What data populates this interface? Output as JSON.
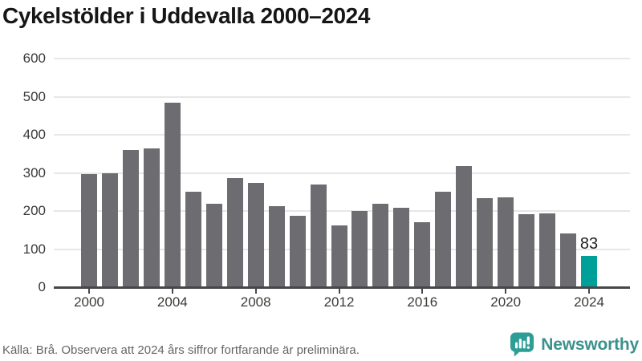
{
  "title": "Cykelstölder i Uddevalla 2000–2024",
  "source_note": "Källa: Brå. Observera att 2024 års siffror fortfarande är preliminära.",
  "branding": {
    "name": "Newsworthy"
  },
  "colors": {
    "bar": "#6d6d71",
    "highlight": "#00a09a",
    "grid": "#e7e7e7",
    "axis": "#47474b",
    "title": "#161616",
    "tick_label": "#3a3a3a",
    "value_label": "#1f1f1f",
    "source": "#646464",
    "brand_icon": "#2d9e96",
    "brand_text": "#3a918d"
  },
  "chart_data": {
    "type": "bar",
    "title": "Cykelstölder i Uddevalla 2000–2024",
    "x": [
      2000,
      2001,
      2002,
      2003,
      2004,
      2005,
      2006,
      2007,
      2008,
      2009,
      2010,
      2011,
      2012,
      2013,
      2014,
      2015,
      2016,
      2017,
      2018,
      2019,
      2020,
      2021,
      2022,
      2023,
      2024
    ],
    "values": [
      296,
      300,
      360,
      365,
      485,
      250,
      219,
      287,
      273,
      213,
      188,
      269,
      163,
      201,
      218,
      209,
      171,
      251,
      317,
      234,
      236,
      191,
      194,
      142,
      83
    ],
    "highlight_year": 2024,
    "highlight_value_label": "83",
    "xlabel": "",
    "ylabel": "",
    "ylim": [
      0,
      600
    ],
    "y_ticks": [
      0,
      100,
      200,
      300,
      400,
      500,
      600
    ],
    "x_ticks": [
      2000,
      2004,
      2008,
      2012,
      2016,
      2020,
      2024
    ],
    "grid": true,
    "legend": false
  }
}
